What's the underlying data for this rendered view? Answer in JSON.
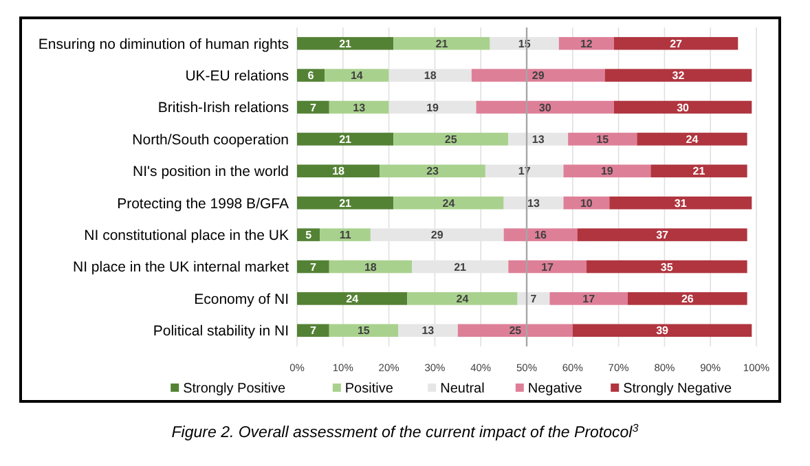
{
  "chart_data": {
    "type": "bar",
    "orientation": "horizontal",
    "stacked": true,
    "data_labels": true,
    "grid": "x",
    "legend": "bottom",
    "categories": [
      "Ensuring no diminution of human rights",
      "UK-EU relations",
      "British-Irish relations",
      "North/South cooperation",
      "NI's position in the world",
      "Protecting the 1998 B/GFA",
      "NI constitutional place in the UK",
      "NI place in the UK internal market",
      "Economy of NI",
      "Political stability in NI"
    ],
    "series": [
      {
        "name": "Strongly Positive",
        "color": "#548235",
        "values": [
          21,
          6,
          7,
          21,
          18,
          21,
          5,
          7,
          24,
          7
        ]
      },
      {
        "name": "Positive",
        "color": "#a9d18e",
        "values": [
          21,
          14,
          13,
          25,
          23,
          24,
          11,
          18,
          24,
          15
        ]
      },
      {
        "name": "Neutral",
        "color": "#e7e6e6",
        "values": [
          15,
          18,
          19,
          13,
          17,
          13,
          29,
          21,
          7,
          13
        ]
      },
      {
        "name": "Negative",
        "color": "#de7f98",
        "values": [
          12,
          29,
          30,
          15,
          19,
          10,
          16,
          17,
          17,
          25
        ]
      },
      {
        "name": "Strongly Negative",
        "color": "#b0353f",
        "values": [
          27,
          32,
          30,
          24,
          21,
          31,
          37,
          35,
          26,
          39
        ]
      }
    ],
    "xlim": [
      0,
      100
    ],
    "xticks": [
      {
        "value": 0,
        "label": "0%"
      },
      {
        "value": 10,
        "label": "10%"
      },
      {
        "value": 20,
        "label": "20%"
      },
      {
        "value": 30,
        "label": "30%"
      },
      {
        "value": 40,
        "label": "40%"
      },
      {
        "value": 50,
        "label": "50%"
      },
      {
        "value": 60,
        "label": "60%"
      },
      {
        "value": 70,
        "label": "70%"
      },
      {
        "value": 80,
        "label": "80%"
      },
      {
        "value": 90,
        "label": "90%"
      },
      {
        "value": 100,
        "label": "100%"
      }
    ],
    "ref_lines": [
      {
        "axis": "x",
        "value": 50,
        "color": "#a6a6a6"
      }
    ],
    "annotations": [
      "Figure 2. Overall assessment of the current impact of the Protocol$^{3}$"
    ]
  }
}
